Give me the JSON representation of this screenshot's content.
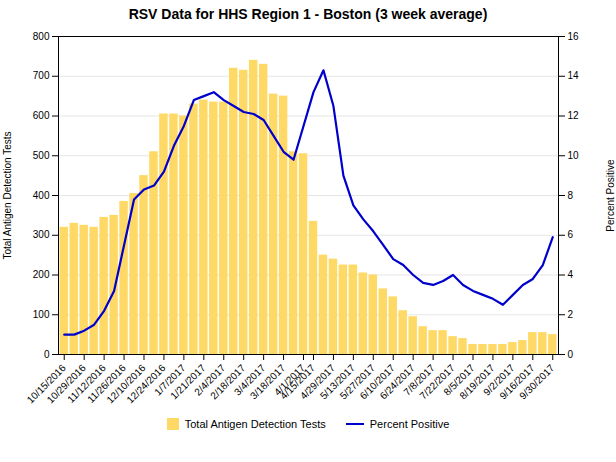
{
  "chart_data": {
    "type": "bar",
    "title": "RSV Data for HHS Region 1 - Boston (3 week average)",
    "ylabel": "Total Antigen Detection Tests",
    "y2label": "Percent Positive",
    "categories": [
      "10/15/2016",
      null,
      "10/29/2016",
      null,
      "11/12/2016",
      null,
      "11/26/2016",
      null,
      "12/10/2016",
      null,
      "12/24/2016",
      null,
      "1/7/2017",
      null,
      "1/21/2017",
      null,
      "2/4/2017",
      null,
      "2/18/2017",
      null,
      "3/4/2017",
      null,
      "3/18/2017",
      null,
      "4/1/2017",
      "4/15/2017",
      null,
      "4/29/2017",
      null,
      "5/13/2017",
      null,
      "5/27/2017",
      null,
      "6/10/2017",
      null,
      "6/24/2017",
      null,
      "7/8/2017",
      null,
      "7/22/2017",
      null,
      "8/5/2017",
      null,
      "8/19/2017",
      null,
      "9/2/2017",
      null,
      "9/16/2017",
      null,
      "9/30/2017"
    ],
    "series": [
      {
        "name": "Total Antigen Detection Tests",
        "type": "bar",
        "color": "#FFD966",
        "values": [
          320,
          330,
          325,
          320,
          345,
          350,
          385,
          405,
          450,
          510,
          605,
          605,
          600,
          630,
          640,
          635,
          635,
          720,
          715,
          740,
          730,
          655,
          650,
          510,
          505,
          335,
          250,
          240,
          225,
          225,
          205,
          200,
          165,
          145,
          110,
          95,
          70,
          60,
          60,
          45,
          40,
          25,
          25,
          25,
          25,
          30,
          35,
          55,
          55,
          50
        ]
      },
      {
        "name": "Percent Positive",
        "type": "line",
        "color": "#0000CC",
        "axis": "y2",
        "values": [
          1.0,
          1.0,
          1.2,
          1.5,
          2.2,
          3.2,
          5.5,
          7.8,
          8.3,
          8.5,
          9.2,
          10.5,
          11.5,
          12.8,
          13.0,
          13.2,
          12.8,
          12.5,
          12.2,
          12.1,
          11.8,
          11.0,
          10.2,
          9.8,
          11.5,
          13.2,
          14.3,
          12.5,
          9.0,
          7.5,
          6.8,
          6.2,
          5.5,
          4.8,
          4.5,
          4.0,
          3.6,
          3.5,
          3.7,
          4.0,
          3.5,
          3.2,
          3.0,
          2.8,
          2.5,
          3.0,
          3.5,
          3.8,
          4.5,
          5.9
        ]
      }
    ],
    "ylim": [
      0,
      800
    ],
    "yticks": [
      0,
      100,
      200,
      300,
      400,
      500,
      600,
      700,
      800
    ],
    "y2lim": [
      0,
      16
    ],
    "y2ticks": [
      0,
      2,
      4,
      6,
      8,
      10,
      12,
      14,
      16
    ],
    "grid": true,
    "legend": "bottom"
  }
}
